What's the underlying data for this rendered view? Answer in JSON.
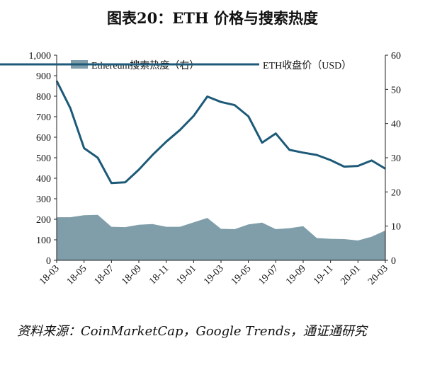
{
  "title": "图表20：ETH 价格与搜索热度",
  "source": "资料来源：CoinMarketCap，Google Trends，通证通研究",
  "colors": {
    "area": "#7f9eaa",
    "line": "#1d5a78"
  },
  "chart_data": {
    "type": "area+line",
    "title": "图表20：ETH 价格与搜索热度",
    "grid": false,
    "legend_position": "top",
    "x_ticks": [
      "18-03",
      "18-05",
      "18-07",
      "18-09",
      "18-11",
      "19-01",
      "19-03",
      "19-05",
      "19-07",
      "19-09",
      "19-11",
      "20-01",
      "20-03"
    ],
    "left_axis": {
      "ylim": [
        0,
        1000
      ],
      "ticks": [
        "0",
        "100",
        "200",
        "300",
        "400",
        "500",
        "600",
        "700",
        "800",
        "900",
        "1,000"
      ]
    },
    "right_axis": {
      "ylim": [
        0,
        60
      ],
      "ticks": [
        "0",
        "10",
        "20",
        "30",
        "40",
        "50",
        "60"
      ]
    },
    "n_points": 25,
    "series": [
      {
        "name": "Ethereum搜索热度（右）",
        "type": "area",
        "axis": "right",
        "values": [
          12.6,
          12.6,
          13.2,
          13.3,
          9.8,
          9.7,
          10.4,
          10.6,
          9.8,
          9.8,
          11.1,
          12.4,
          9.2,
          9.1,
          10.5,
          11,
          9.1,
          9.4,
          10,
          6.5,
          6.3,
          6.2,
          5.8,
          6.9,
          8.7
        ]
      },
      {
        "name": "ETH收盘价（USD）",
        "type": "line",
        "axis": "right",
        "values": [
          52.5,
          44.5,
          32.8,
          30,
          22.6,
          22.8,
          26.5,
          30.8,
          34.7,
          38.1,
          42.2,
          47.9,
          46.3,
          45.4,
          42.1,
          34.4,
          37.1,
          32.3,
          31.5,
          30.8,
          29.3,
          27.4,
          27.6,
          29.2,
          26.8
        ]
      }
    ]
  }
}
